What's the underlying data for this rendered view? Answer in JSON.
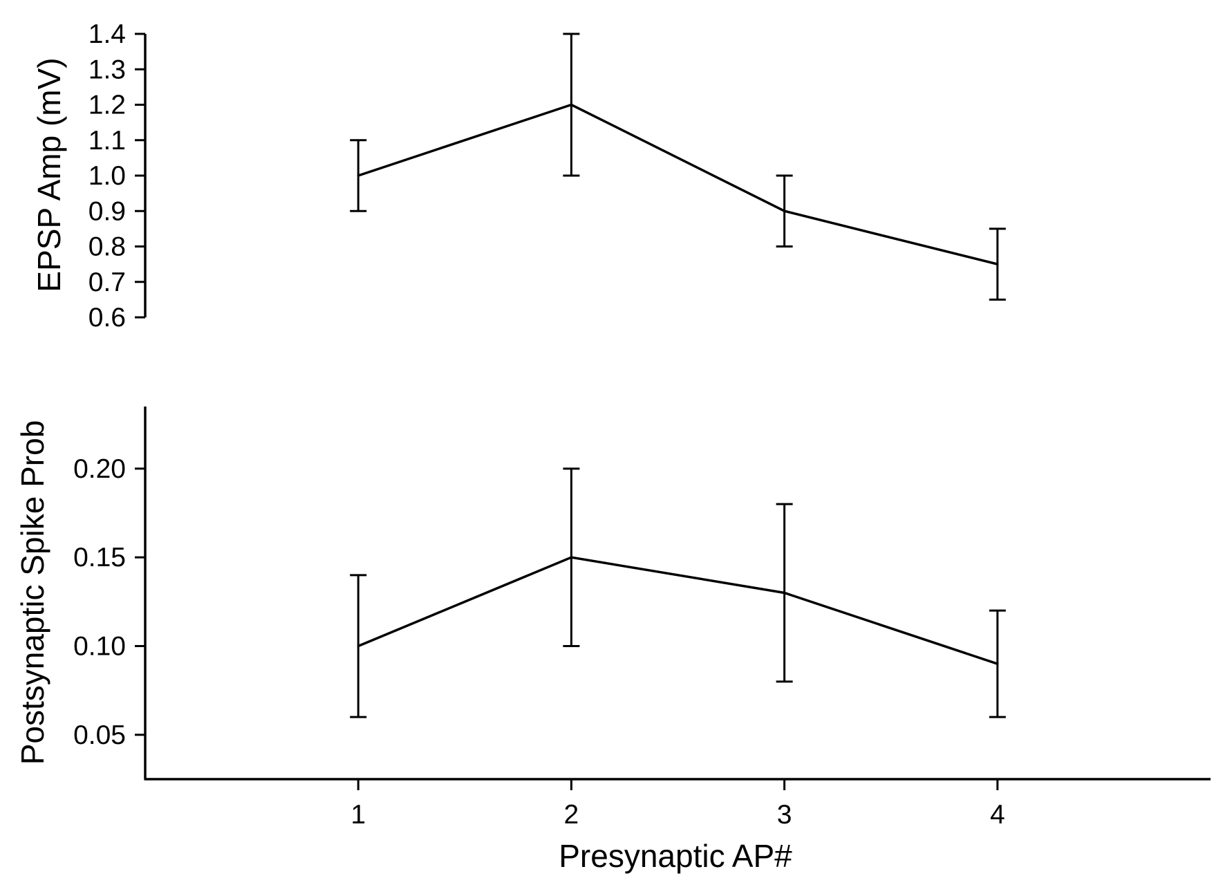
{
  "chart_data": [
    {
      "type": "line",
      "panel": "top",
      "categories": [
        1,
        2,
        3,
        4
      ],
      "series": [
        {
          "values": [
            1.0,
            1.2,
            0.9,
            0.75
          ],
          "errors": [
            0.1,
            0.2,
            0.1,
            0.1
          ]
        }
      ],
      "xlabel": "",
      "ylabel": "EPSP Amp (mV)",
      "ylim": [
        0.6,
        1.4
      ],
      "yticks": [
        0.6,
        0.7,
        0.8,
        0.9,
        1.0,
        1.1,
        1.2,
        1.3,
        1.4
      ],
      "ytick_labels": [
        "0.6",
        "0.7",
        "0.8",
        "0.9",
        "1.0",
        "1.1",
        "1.2",
        "1.3",
        "1.4"
      ],
      "grid": false,
      "colors": {
        "line": "#000000"
      }
    },
    {
      "type": "line",
      "panel": "bottom",
      "categories": [
        1,
        2,
        3,
        4
      ],
      "series": [
        {
          "values": [
            0.1,
            0.15,
            0.13,
            0.09
          ],
          "errors": [
            0.04,
            0.05,
            0.05,
            0.03
          ]
        }
      ],
      "xlabel": "Presynaptic AP#",
      "ylabel": "Postsynaptic Spike Prob",
      "ylim": [
        0.025,
        0.235
      ],
      "xlim": [
        0,
        5
      ],
      "yticks": [
        0.05,
        0.1,
        0.15,
        0.2
      ],
      "ytick_labels": [
        "0.05",
        "0.10",
        "0.15",
        "0.20"
      ],
      "xticks": [
        1,
        2,
        3,
        4
      ],
      "xtick_labels": [
        "1",
        "2",
        "3",
        "4"
      ],
      "grid": false,
      "colors": {
        "line": "#000000"
      }
    }
  ]
}
